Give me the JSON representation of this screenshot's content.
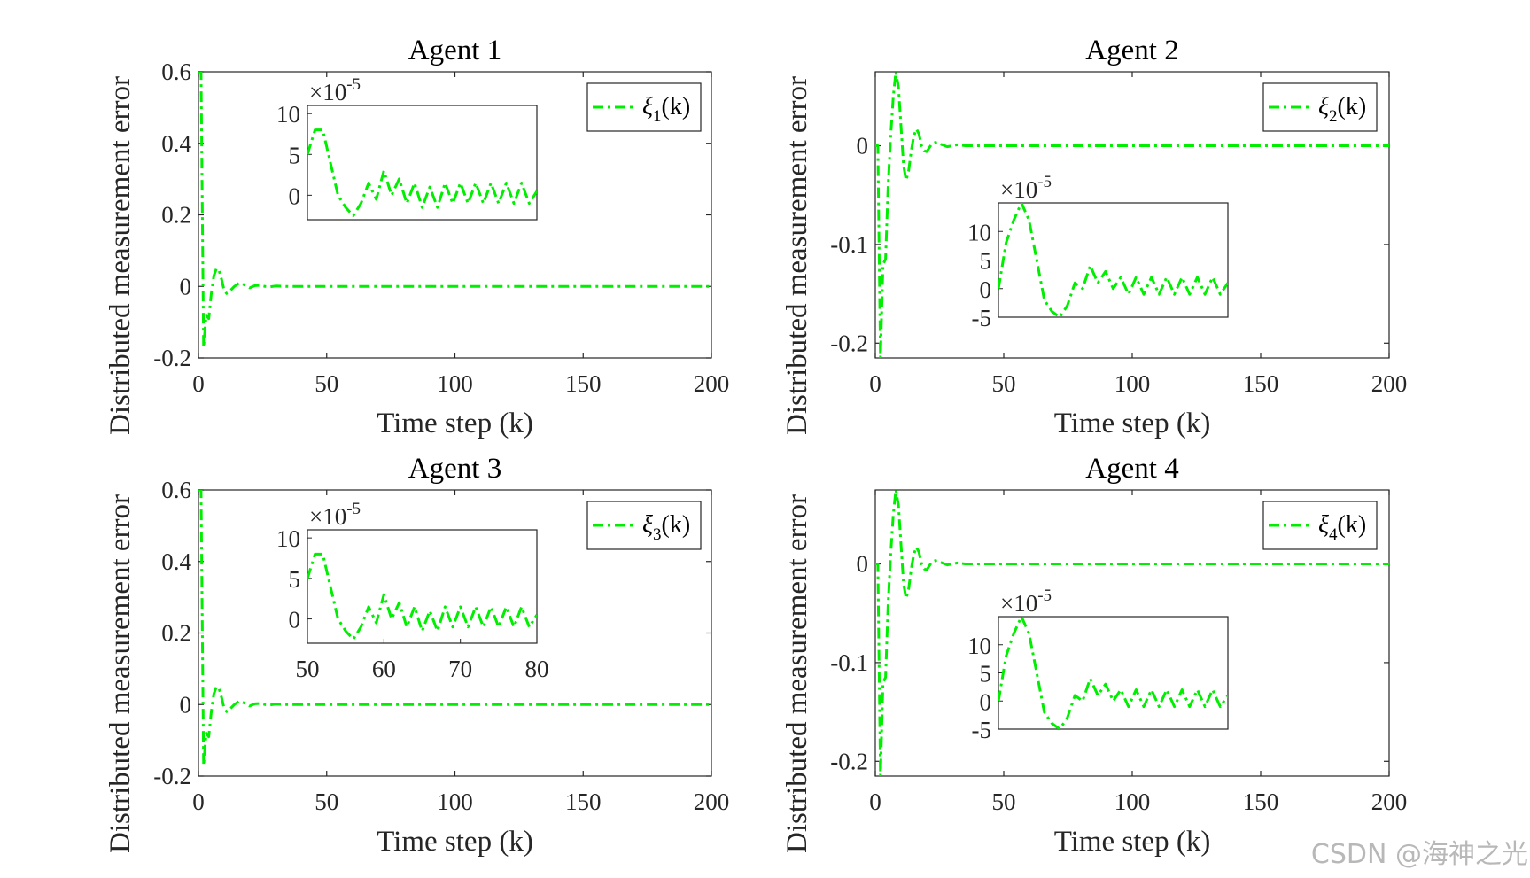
{
  "watermark": "CSDN @海神之光",
  "line_color": "#00ee00",
  "chart_data": [
    {
      "type": "line",
      "title": "Agent 1",
      "xlabel": "Time step (k)",
      "ylabel": "Distributed measurement error",
      "xlim": [
        0,
        200
      ],
      "ylim": [
        -0.2,
        0.6
      ],
      "xticks": [
        0,
        50,
        100,
        150,
        200
      ],
      "yticks": [
        -0.2,
        0,
        0.2,
        0.4,
        0.6
      ],
      "ytick_labels": [
        "-0.2",
        "0",
        "0.2",
        "0.4",
        "0.6"
      ],
      "series": [
        {
          "name_sym": "ξ",
          "name_sub": "1",
          "name_tail": "(k)",
          "x": [
            0,
            1,
            2,
            3,
            4,
            5,
            6,
            7,
            8,
            9,
            10,
            11,
            12,
            14,
            16,
            18,
            20,
            22,
            24,
            26,
            28,
            30,
            35,
            40,
            60,
            100,
            150,
            200
          ],
          "y": [
            0.6,
            0.6,
            -0.17,
            -0.08,
            -0.09,
            -0.02,
            0.03,
            0.05,
            0.045,
            0.02,
            -0.01,
            -0.02,
            -0.015,
            0.0,
            0.01,
            0.004,
            -0.004,
            0.002,
            0.003,
            0.0,
            -0.001,
            0.001,
            0.0,
            0.0,
            0.0,
            0.0,
            0.0,
            0.0
          ]
        }
      ],
      "inset": {
        "exp_label": "×10",
        "exp_sup": "-5",
        "xlim": [
          50,
          80
        ],
        "ylim": [
          -3,
          11
        ],
        "yticks": [
          0,
          5,
          10
        ],
        "xticks": [],
        "x": [
          50,
          51,
          52,
          53,
          54,
          55,
          56,
          57,
          58,
          59,
          60,
          61,
          62,
          63,
          64,
          65,
          66,
          67,
          68,
          69,
          70,
          71,
          72,
          73,
          74,
          75,
          76,
          77,
          78,
          79,
          80
        ],
        "y": [
          5,
          8,
          8,
          4,
          0,
          -1.5,
          -2.5,
          -1,
          1.5,
          -0.5,
          3,
          0,
          2,
          -1,
          1.5,
          -1.5,
          1,
          -1.5,
          1.5,
          -1,
          1.5,
          -1,
          1.5,
          -1,
          1.5,
          -1,
          1.5,
          -1,
          1.5,
          -1,
          0.5
        ]
      }
    },
    {
      "type": "line",
      "title": "Agent 2",
      "xlabel": "Time step (k)",
      "ylabel": "Distributed measurement error",
      "xlim": [
        0,
        200
      ],
      "ylim": [
        -0.215,
        0.075
      ],
      "xticks": [
        0,
        50,
        100,
        150,
        200
      ],
      "yticks": [
        -0.2,
        -0.1,
        0
      ],
      "ytick_labels": [
        "-0.2",
        "-0.1",
        "0"
      ],
      "series": [
        {
          "name_sym": "ξ",
          "name_sub": "2",
          "name_tail": "(k)",
          "x": [
            0,
            1,
            2,
            3,
            4,
            5,
            6,
            7,
            8,
            9,
            10,
            11,
            12,
            13,
            14,
            15,
            16,
            17,
            18,
            19,
            20,
            21,
            22,
            24,
            26,
            28,
            30,
            32,
            35,
            40,
            60,
            100,
            150,
            200
          ],
          "y": [
            0.0,
            0.0,
            -0.215,
            -0.12,
            -0.115,
            -0.04,
            0.01,
            0.05,
            0.075,
            0.06,
            0.02,
            -0.02,
            -0.035,
            -0.025,
            -0.005,
            0.01,
            0.017,
            0.012,
            0.0,
            -0.005,
            -0.006,
            -0.002,
            0.002,
            0.004,
            0.001,
            -0.001,
            0.0,
            0.001,
            0.0,
            0.0,
            0.0,
            0.0,
            0.0,
            0.0
          ]
        }
      ],
      "inset": {
        "exp_label": "×10",
        "exp_sup": "-5",
        "xlim": [
          50,
          80
        ],
        "ylim": [
          -5,
          15
        ],
        "yticks": [
          -5,
          0,
          5,
          10
        ],
        "xticks": [],
        "x": [
          50,
          51,
          52,
          53,
          54,
          55,
          56,
          57,
          58,
          59,
          60,
          61,
          62,
          63,
          64,
          65,
          66,
          67,
          68,
          69,
          70,
          71,
          72,
          73,
          74,
          75,
          76,
          77,
          78,
          79,
          80
        ],
        "y": [
          0,
          8,
          12,
          15,
          12,
          5,
          -2,
          -4,
          -5,
          -3,
          1,
          0,
          4,
          1,
          3,
          0,
          2,
          -1,
          2,
          -1,
          2,
          -1,
          2,
          -1,
          2,
          -1,
          2,
          -1,
          2,
          -1,
          1
        ]
      }
    },
    {
      "type": "line",
      "title": "Agent 3",
      "xlabel": "Time step (k)",
      "ylabel": "Distributed measurement error",
      "xlim": [
        0,
        200
      ],
      "ylim": [
        -0.2,
        0.6
      ],
      "xticks": [
        0,
        50,
        100,
        150,
        200
      ],
      "yticks": [
        -0.2,
        0,
        0.2,
        0.4,
        0.6
      ],
      "ytick_labels": [
        "-0.2",
        "0",
        "0.2",
        "0.4",
        "0.6"
      ],
      "series": [
        {
          "name_sym": "ξ",
          "name_sub": "3",
          "name_tail": "(k)",
          "x": [
            0,
            1,
            2,
            3,
            4,
            5,
            6,
            7,
            8,
            9,
            10,
            11,
            12,
            14,
            16,
            18,
            20,
            22,
            24,
            26,
            28,
            30,
            35,
            40,
            60,
            100,
            150,
            200
          ],
          "y": [
            0.6,
            0.6,
            -0.17,
            -0.08,
            -0.09,
            -0.02,
            0.03,
            0.05,
            0.045,
            0.02,
            -0.01,
            -0.02,
            -0.015,
            0.0,
            0.01,
            0.004,
            -0.004,
            0.002,
            0.003,
            0.0,
            -0.001,
            0.001,
            0.0,
            0.0,
            0.0,
            0.0,
            0.0,
            0.0
          ]
        }
      ],
      "inset": {
        "exp_label": "×10",
        "exp_sup": "-5",
        "xlim": [
          50,
          80
        ],
        "ylim": [
          -3,
          11
        ],
        "yticks": [
          0,
          5,
          10
        ],
        "xticks": [
          50,
          60,
          70,
          80
        ],
        "x": [
          50,
          51,
          52,
          53,
          54,
          55,
          56,
          57,
          58,
          59,
          60,
          61,
          62,
          63,
          64,
          65,
          66,
          67,
          68,
          69,
          70,
          71,
          72,
          73,
          74,
          75,
          76,
          77,
          78,
          79,
          80
        ],
        "y": [
          5,
          8,
          8,
          4,
          0,
          -1.5,
          -2.5,
          -1,
          1.5,
          -0.5,
          3,
          0,
          2,
          -1,
          1.5,
          -1.5,
          1,
          -1.5,
          1.5,
          -1,
          1.5,
          -1,
          1.5,
          -1,
          1.5,
          -1,
          1.5,
          -1,
          1.5,
          -1,
          0.5
        ]
      }
    },
    {
      "type": "line",
      "title": "Agent 4",
      "xlabel": "Time step (k)",
      "ylabel": "Distributed measurement error",
      "xlim": [
        0,
        200
      ],
      "ylim": [
        -0.215,
        0.075
      ],
      "xticks": [
        0,
        50,
        100,
        150,
        200
      ],
      "yticks": [
        -0.2,
        -0.1,
        0
      ],
      "ytick_labels": [
        "-0.2",
        "-0.1",
        "0"
      ],
      "series": [
        {
          "name_sym": "ξ",
          "name_sub": "4",
          "name_tail": "(k)",
          "x": [
            0,
            1,
            2,
            3,
            4,
            5,
            6,
            7,
            8,
            9,
            10,
            11,
            12,
            13,
            14,
            15,
            16,
            17,
            18,
            19,
            20,
            21,
            22,
            24,
            26,
            28,
            30,
            32,
            35,
            40,
            60,
            100,
            150,
            200
          ],
          "y": [
            0.0,
            0.0,
            -0.215,
            -0.12,
            -0.115,
            -0.04,
            0.01,
            0.05,
            0.075,
            0.06,
            0.02,
            -0.02,
            -0.035,
            -0.025,
            -0.005,
            0.01,
            0.017,
            0.012,
            0.0,
            -0.005,
            -0.006,
            -0.002,
            0.002,
            0.004,
            0.001,
            -0.001,
            0.0,
            0.001,
            0.0,
            0.0,
            0.0,
            0.0,
            0.0,
            0.0
          ]
        }
      ],
      "inset": {
        "exp_label": "×10",
        "exp_sup": "-5",
        "xlim": [
          50,
          80
        ],
        "ylim": [
          -5,
          15
        ],
        "yticks": [
          -5,
          0,
          5,
          10
        ],
        "xticks": [],
        "x": [
          50,
          51,
          52,
          53,
          54,
          55,
          56,
          57,
          58,
          59,
          60,
          61,
          62,
          63,
          64,
          65,
          66,
          67,
          68,
          69,
          70,
          71,
          72,
          73,
          74,
          75,
          76,
          77,
          78,
          79,
          80
        ],
        "y": [
          0,
          8,
          12,
          15,
          12,
          5,
          -2,
          -4,
          -5,
          -3,
          1,
          0,
          4,
          1,
          3,
          0,
          2,
          -1,
          2,
          -1,
          2,
          -1,
          2,
          -1,
          2,
          -1,
          2,
          -1,
          2,
          -1,
          1
        ]
      }
    }
  ]
}
